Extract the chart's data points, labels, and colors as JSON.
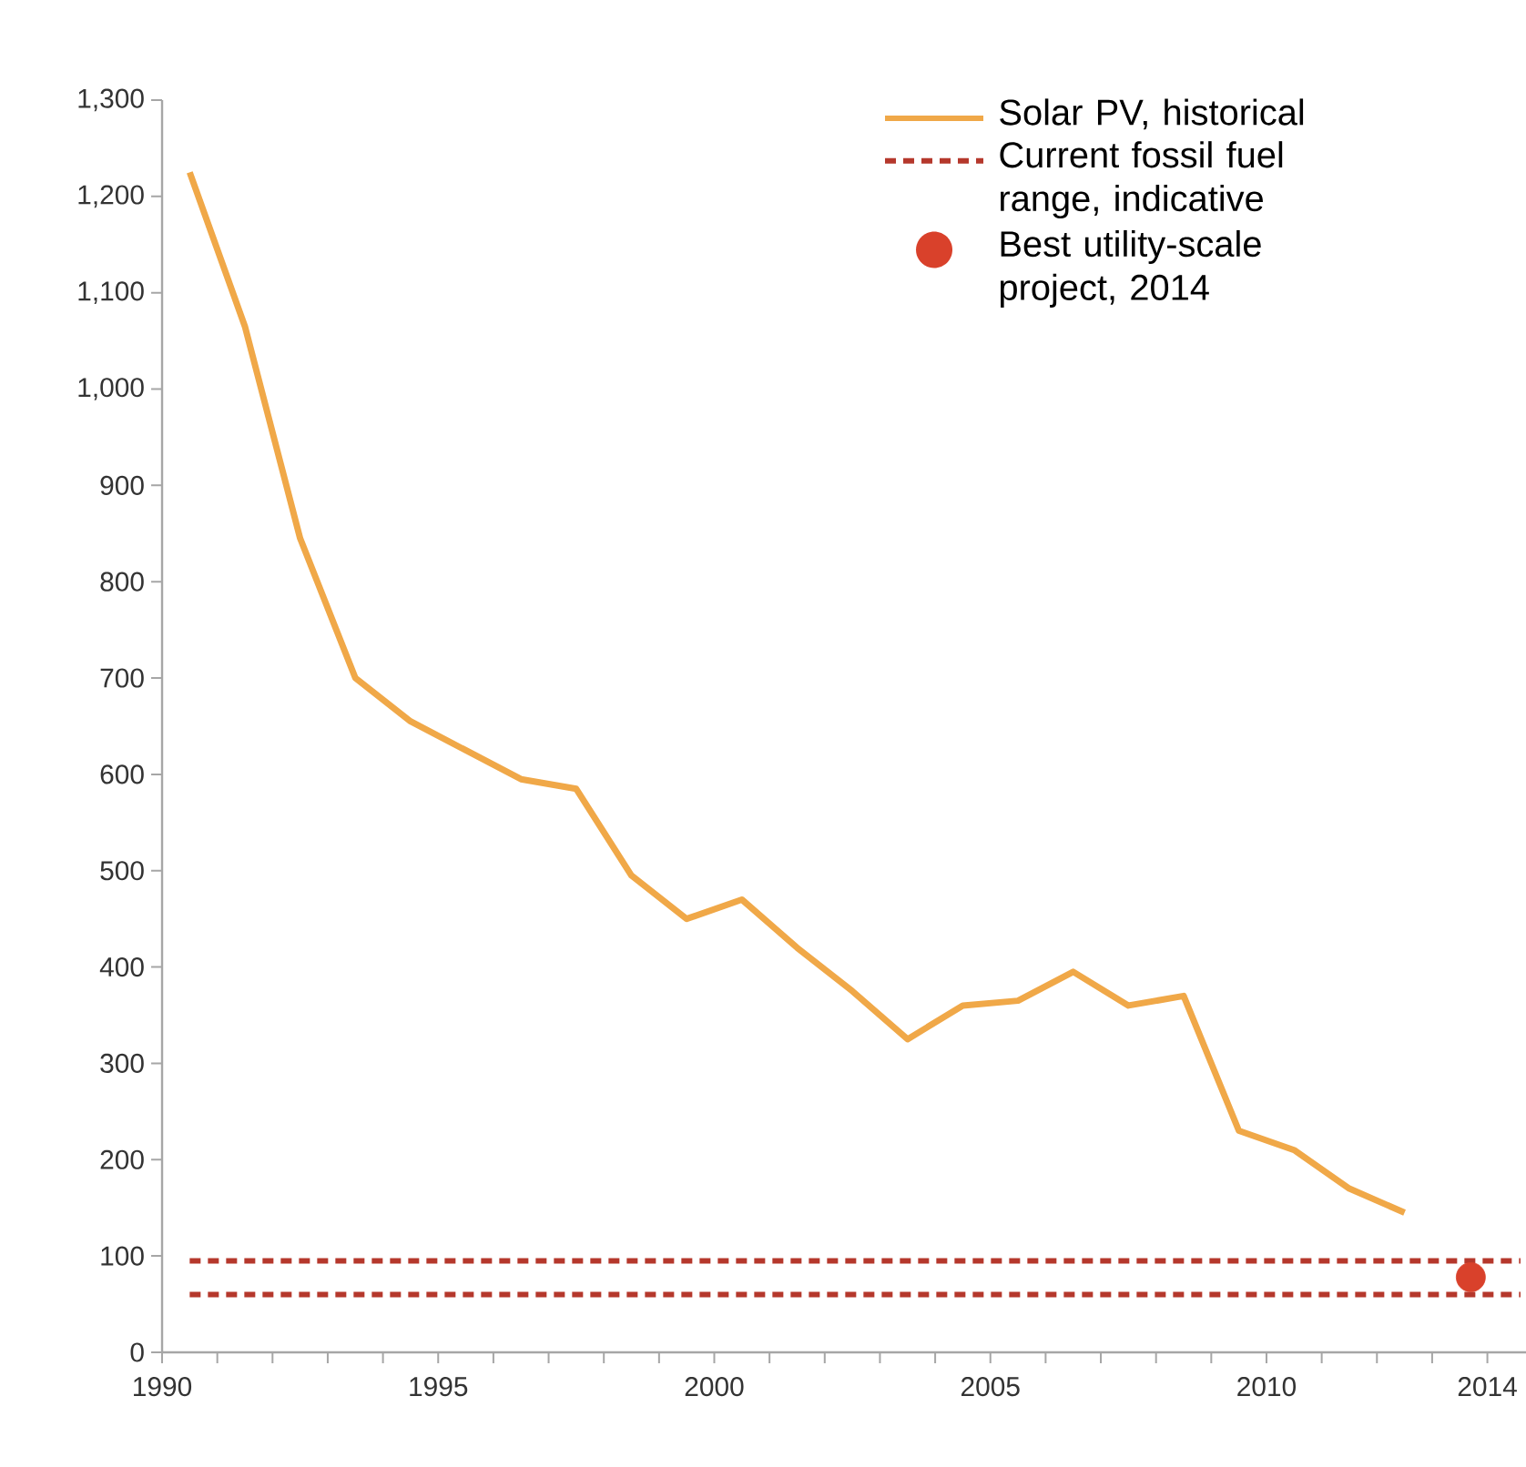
{
  "chart_data": {
    "type": "line",
    "x": [
      1990.5,
      1991.5,
      1992.5,
      1993.5,
      1994.5,
      1995.5,
      1996.5,
      1997.5,
      1998.5,
      1999.5,
      2000.5,
      2001.5,
      2002.5,
      2003.5,
      2004.5,
      2005.5,
      2006.5,
      2007.5,
      2008.5,
      2009.5,
      2010.5,
      2011.5,
      2012.5
    ],
    "series": [
      {
        "name": "Solar PV, historical",
        "color": "#f0a848",
        "type": "line",
        "marker": "none",
        "line_style": "solid",
        "values": [
          1225,
          1065,
          845,
          700,
          655,
          625,
          595,
          585,
          495,
          450,
          470,
          420,
          375,
          325,
          360,
          365,
          395,
          360,
          370,
          230,
          210,
          170,
          145
        ]
      },
      {
        "name": "Best utility-scale project, 2014",
        "color": "#d9412b",
        "type": "scatter",
        "marker": "circle",
        "x": [
          2013.7
        ],
        "values": [
          78
        ]
      }
    ],
    "ref_lines": [
      {
        "axis": "y",
        "value": 95,
        "label": "Current fossil fuel range, indicative",
        "color": "#b5382c",
        "line_style": "dashed"
      },
      {
        "axis": "y",
        "value": 60,
        "label": null,
        "color": "#b5382c",
        "line_style": "dashed"
      }
    ],
    "xlim": [
      1990,
      2014.7
    ],
    "xticks": [
      1990,
      {
        "value": 1991,
        "label": null
      },
      {
        "value": 1992,
        "label": null
      },
      {
        "value": 1993,
        "label": null
      },
      {
        "value": 1994,
        "label": null
      },
      1995,
      {
        "value": 1996,
        "label": null
      },
      {
        "value": 1997,
        "label": null
      },
      {
        "value": 1998,
        "label": null
      },
      {
        "value": 1999,
        "label": null
      },
      2000,
      {
        "value": 2001,
        "label": null
      },
      {
        "value": 2002,
        "label": null
      },
      {
        "value": 2003,
        "label": null
      },
      {
        "value": 2004,
        "label": null
      },
      2005,
      {
        "value": 2006,
        "label": null
      },
      {
        "value": 2007,
        "label": null
      },
      {
        "value": 2008,
        "label": null
      },
      {
        "value": 2009,
        "label": null
      },
      2010,
      {
        "value": 2011,
        "label": null
      },
      {
        "value": 2012,
        "label": null
      },
      {
        "value": 2013,
        "label": null
      },
      2014
    ],
    "ylim": [
      0,
      1300
    ],
    "yticks": [
      0,
      100,
      200,
      300,
      400,
      500,
      600,
      700,
      800,
      900,
      {
        "value": 1000,
        "label": "1,000"
      },
      {
        "value": 1100,
        "label": "1,100"
      },
      {
        "value": 1200,
        "label": "1,200"
      },
      {
        "value": 1300,
        "label": "1,300"
      }
    ],
    "grid": false,
    "legend": "top right"
  }
}
